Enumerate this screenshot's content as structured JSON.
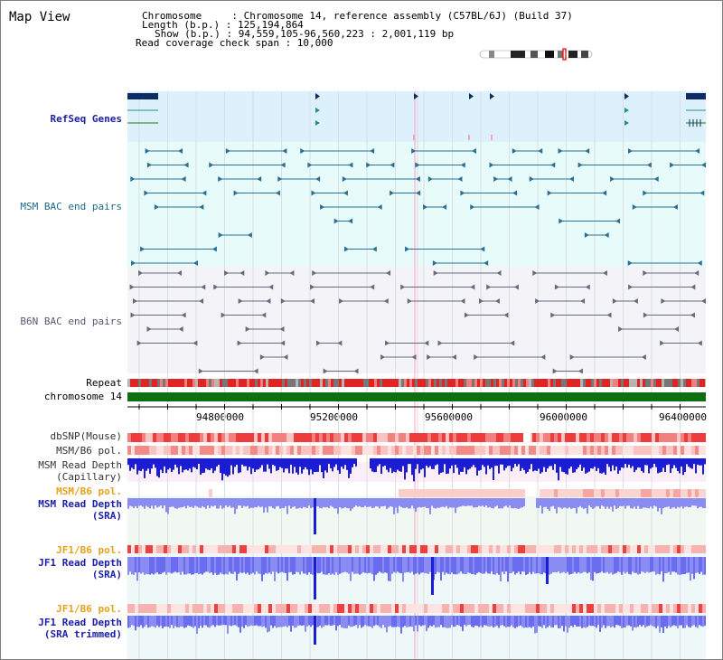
{
  "header": {
    "title": "Map View",
    "chromosome_line": "Chromosome     : Chromosome 14, reference assembly (C57BL/6J) (Build 37)",
    "length_line": "Length (b.p.) : 125,194,864",
    "show_line": "Show (b.p.) : 94,559,105-96,560,223 : 2,001,119 bp",
    "span_line": "Read coverage check span : 10,000"
  },
  "tracks": {
    "refseq": "RefSeq Genes",
    "msm_bac": "MSM BAC end pairs",
    "b6n_bac": "B6N BAC end pairs",
    "repeat": "Repeat",
    "chromosome": "chromosome 14",
    "dbsnp": "dbSNP(Mouse)",
    "msm_b6_pol_1": "MSM/B6 pol.",
    "msm_depth_cap_1": "MSM Read Depth",
    "msm_depth_cap_2": "(Capillary)",
    "msm_b6_pol_2": "MSM/B6 pol.",
    "msm_depth_sra_1": "MSM Read Depth",
    "msm_depth_sra_2": "(SRA)",
    "jf1_b6_pol_1": "JF1/B6 pol.",
    "jf1_depth_sra_1": "JF1 Read Depth",
    "jf1_depth_sra_2": "(SRA)",
    "jf1_b6_pol_2": "JF1/B6 pol.",
    "jf1_depth_trim_1": "JF1 Read Depth",
    "jf1_depth_trim_2": "(SRA trimmed)"
  },
  "axis": {
    "ticks": [
      "94800000",
      "95200000",
      "95600000",
      "96000000",
      "96400000"
    ]
  },
  "colors": {
    "refseq_bg": "#dcf1fb",
    "msm_bg": "#e8fbfb",
    "b6n_bg": "#f4f4f8",
    "gene": "#0d2c63",
    "gene_arrow": "#2a8c8c",
    "bac_teal": "#2b6f92",
    "bac_gray": "#666a7a",
    "chromosome_bar": "#0e6f12",
    "snp_red": "#e8383a",
    "depth_blue": "#1a1cd6",
    "depth_light": "#8a8cf2",
    "pol_pink": "#f5b8b4",
    "highlight_pink": "#f7a3c6"
  }
}
